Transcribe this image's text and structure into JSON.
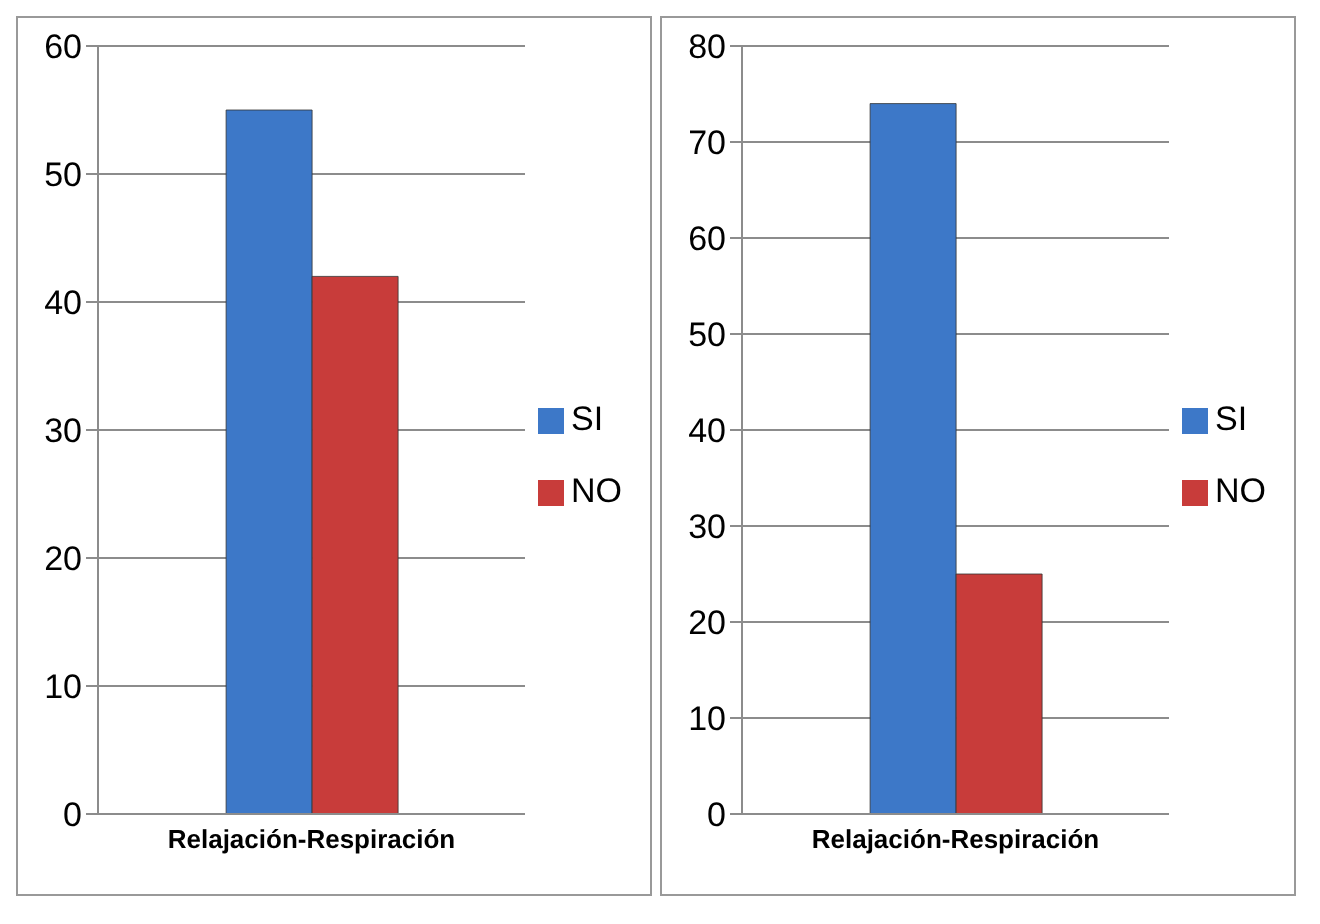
{
  "chart_data": [
    {
      "type": "bar",
      "categories": [
        "Relajación-Respiración"
      ],
      "series": [
        {
          "name": "SI",
          "color": "#3d78c8",
          "values": [
            55
          ]
        },
        {
          "name": "NO",
          "color": "#c83c3a",
          "values": [
            42
          ]
        }
      ],
      "ylim": [
        0,
        60
      ],
      "yticks": [
        0,
        10,
        20,
        30,
        40,
        50,
        60
      ],
      "grid": "y",
      "legend": "right"
    },
    {
      "type": "bar",
      "categories": [
        "Relajación-Respiración"
      ],
      "series": [
        {
          "name": "SI",
          "color": "#3d78c8",
          "values": [
            74
          ]
        },
        {
          "name": "NO",
          "color": "#c83c3a",
          "values": [
            25
          ]
        }
      ],
      "ylim": [
        0,
        80
      ],
      "yticks": [
        0,
        10,
        20,
        30,
        40,
        50,
        60,
        70,
        80
      ],
      "grid": "y",
      "legend": "right"
    }
  ]
}
